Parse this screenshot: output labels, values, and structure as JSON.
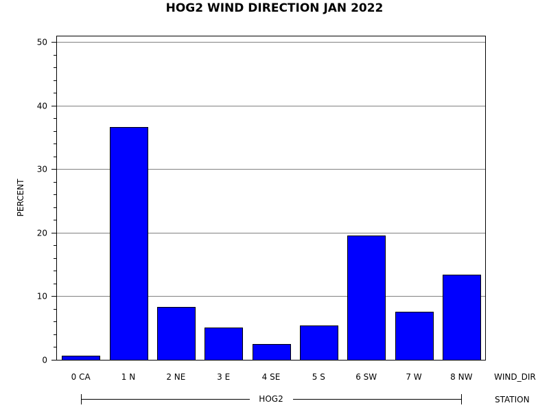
{
  "chart_data": {
    "type": "bar",
    "title": "HOG2 WIND DIRECTION JAN 2022",
    "ylabel": "PERCENT",
    "xlabel": "",
    "ylim": [
      0,
      50
    ],
    "yticks": [
      0,
      10,
      20,
      30,
      40,
      50
    ],
    "grid": true,
    "categories": [
      "0 CA",
      "1 N",
      "2 NE",
      "3 E",
      "4 SE",
      "5 S",
      "6 SW",
      "7 W",
      "8 NW"
    ],
    "values": [
      0.7,
      36.6,
      8.3,
      5.1,
      2.5,
      5.4,
      19.6,
      7.6,
      13.4
    ],
    "bar_color": "#0000ff",
    "category_axis_name": "WIND_DIR",
    "group_axis_name": "STATION",
    "group_label": "HOG2"
  }
}
